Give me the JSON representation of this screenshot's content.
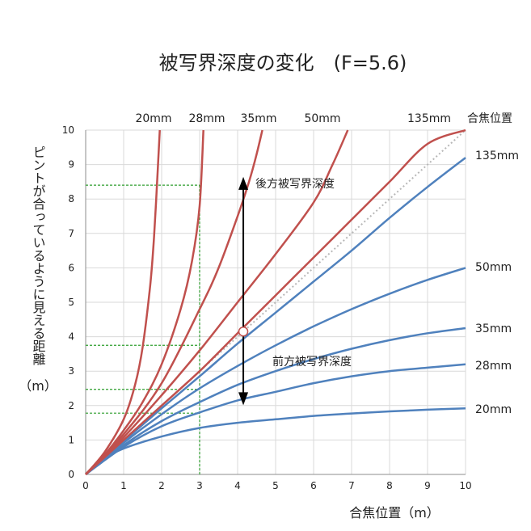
{
  "chart_data": {
    "type": "line",
    "title": "被写界深度の変化　(F=5.6)",
    "xlabel": "合焦位置（m）",
    "ylabel": "ピントが合っているように見える距離",
    "ylabel_unit": "（m）",
    "xlim": [
      0,
      10
    ],
    "ylim": [
      0,
      10
    ],
    "x_ticks": [
      "0",
      "1",
      "2",
      "3",
      "4",
      "5",
      "6",
      "7",
      "8",
      "9",
      "10"
    ],
    "y_ticks": [
      "0",
      "1",
      "2",
      "3",
      "4",
      "5",
      "6",
      "7",
      "8",
      "9",
      "10"
    ],
    "grid": true,
    "reference_line": {
      "label": "合焦位置",
      "x": [
        0,
        10
      ],
      "y": [
        0,
        10
      ]
    },
    "far_limit_series": [
      {
        "name": "20mm",
        "x": [
          0,
          0.5,
          1.0,
          1.3,
          1.5,
          1.7,
          1.8,
          1.9,
          1.95
        ],
        "y": [
          0,
          0.65,
          1.6,
          2.6,
          3.7,
          5.5,
          6.9,
          8.9,
          10
        ]
      },
      {
        "name": "28mm",
        "x": [
          0,
          0.5,
          1.0,
          1.5,
          2.0,
          2.5,
          2.8,
          3.0,
          3.1
        ],
        "y": [
          0,
          0.57,
          1.28,
          2.1,
          3.2,
          4.8,
          6.2,
          7.8,
          10
        ]
      },
      {
        "name": "35mm",
        "x": [
          0,
          1.0,
          2.0,
          3.0,
          3.5,
          4.0,
          4.3,
          4.5,
          4.65
        ],
        "y": [
          0,
          1.17,
          2.65,
          4.8,
          6.0,
          7.5,
          8.5,
          9.3,
          10
        ]
      },
      {
        "name": "50mm",
        "x": [
          0,
          1.0,
          2.0,
          3.0,
          4.0,
          5.0,
          6.0,
          6.5,
          6.9
        ],
        "y": [
          0,
          1.08,
          2.3,
          3.6,
          5.0,
          6.4,
          7.9,
          9.0,
          10
        ]
      },
      {
        "name": "135mm",
        "x": [
          0,
          1.0,
          2.0,
          3.0,
          4.0,
          5.0,
          6.0,
          7.0,
          8.0,
          9.0,
          10.0
        ],
        "y": [
          0,
          1.0,
          2.0,
          3.0,
          4.1,
          5.2,
          6.3,
          7.4,
          8.5,
          9.6,
          10
        ]
      }
    ],
    "near_limit_series": [
      {
        "name": "135mm",
        "x": [
          0,
          1.0,
          2.0,
          3.0,
          4.0,
          5.0,
          6.0,
          7.0,
          8.0,
          9.0,
          10.0
        ],
        "y": [
          0,
          0.97,
          1.92,
          2.85,
          3.8,
          4.7,
          5.6,
          6.5,
          7.45,
          8.35,
          9.2
        ]
      },
      {
        "name": "50mm",
        "x": [
          0,
          1.0,
          2.0,
          3.0,
          4.0,
          5.0,
          6.0,
          7.0,
          8.0,
          9.0,
          10.0
        ],
        "y": [
          0,
          0.92,
          1.75,
          2.5,
          3.15,
          3.75,
          4.3,
          4.8,
          5.25,
          5.65,
          6.0
        ]
      },
      {
        "name": "35mm",
        "x": [
          0,
          1.0,
          2.0,
          3.0,
          4.0,
          5.0,
          6.0,
          7.0,
          8.0,
          9.0,
          10.0
        ],
        "y": [
          0,
          0.85,
          1.55,
          2.1,
          2.6,
          3.0,
          3.35,
          3.65,
          3.9,
          4.1,
          4.25
        ]
      },
      {
        "name": "28mm",
        "x": [
          0,
          1.0,
          2.0,
          3.0,
          4.0,
          5.0,
          6.0,
          7.0,
          8.0,
          9.0,
          10.0
        ],
        "y": [
          0,
          0.8,
          1.4,
          1.8,
          2.15,
          2.4,
          2.65,
          2.85,
          3.0,
          3.1,
          3.2
        ]
      },
      {
        "name": "20mm",
        "x": [
          0,
          0.5,
          1.0,
          2.0,
          3.0,
          4.0,
          5.0,
          6.0,
          7.0,
          8.0,
          9.0,
          10.0
        ],
        "y": [
          0,
          0.45,
          0.75,
          1.1,
          1.35,
          1.5,
          1.6,
          1.7,
          1.77,
          1.83,
          1.88,
          1.92
        ]
      }
    ],
    "guide_lines": {
      "vertical_x": 3,
      "horizontal_y": [
        8.4,
        3.75,
        2.47,
        1.78
      ]
    },
    "focus_marker": {
      "x": 4.15,
      "y": 4.15
    },
    "arrow": {
      "x": 4.15,
      "y_top": 8.5,
      "y_bottom": 2.15
    },
    "annotations": {
      "rear": "後方被写界深度",
      "front": "前方被写界深度"
    },
    "colors": {
      "far": "#c0504d",
      "near": "#4f81bd",
      "guide": "#2e9e2e",
      "reference": "#b8b8b8",
      "arrow": "#000000"
    }
  }
}
